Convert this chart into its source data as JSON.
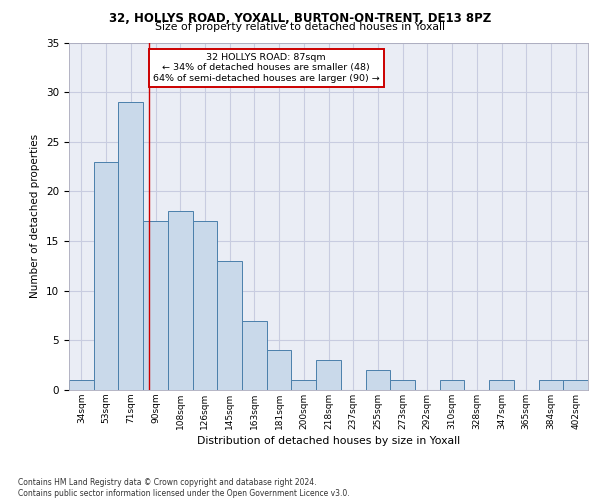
{
  "title_line1": "32, HOLLYS ROAD, YOXALL, BURTON-ON-TRENT, DE13 8PZ",
  "title_line2": "Size of property relative to detached houses in Yoxall",
  "xlabel": "Distribution of detached houses by size in Yoxall",
  "ylabel": "Number of detached properties",
  "bin_labels": [
    "34sqm",
    "53sqm",
    "71sqm",
    "90sqm",
    "108sqm",
    "126sqm",
    "145sqm",
    "163sqm",
    "181sqm",
    "200sqm",
    "218sqm",
    "237sqm",
    "255sqm",
    "273sqm",
    "292sqm",
    "310sqm",
    "328sqm",
    "347sqm",
    "365sqm",
    "384sqm",
    "402sqm"
  ],
  "bar_values": [
    1,
    23,
    29,
    17,
    18,
    17,
    13,
    7,
    4,
    1,
    3,
    0,
    2,
    1,
    0,
    1,
    0,
    1,
    0,
    1,
    1
  ],
  "bar_color": "#c9d9ea",
  "bar_edge_color": "#4a7fab",
  "grid_color": "#c8cce0",
  "bg_color": "#eaedf5",
  "red_line_x": 2.72,
  "annotation_text": "32 HOLLYS ROAD: 87sqm\n← 34% of detached houses are smaller (48)\n64% of semi-detached houses are larger (90) →",
  "annotation_box_color": "#ffffff",
  "annotation_border_color": "#cc0000",
  "ylim": [
    0,
    35
  ],
  "yticks": [
    0,
    5,
    10,
    15,
    20,
    25,
    30,
    35
  ],
  "footnote": "Contains HM Land Registry data © Crown copyright and database right 2024.\nContains public sector information licensed under the Open Government Licence v3.0."
}
